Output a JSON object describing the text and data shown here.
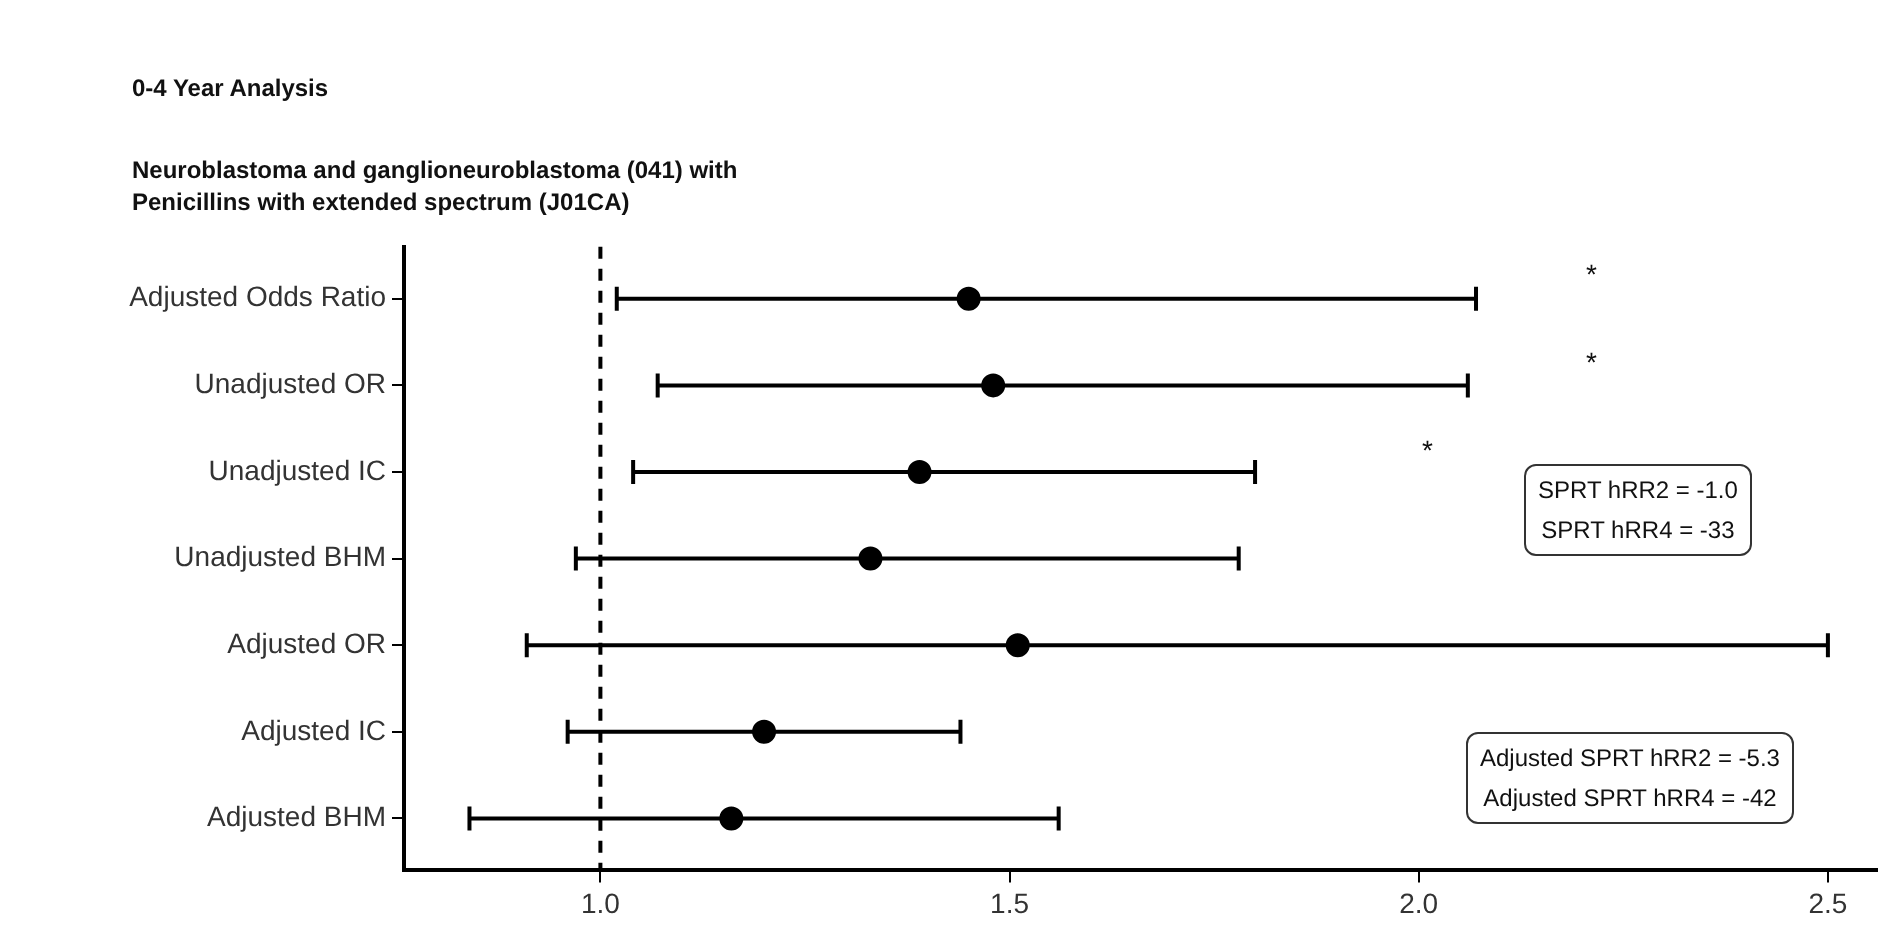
{
  "chart_data": {
    "type": "scatter",
    "orientation": "horizontal",
    "title": "0-4 Year Analysis",
    "subtitle": "Neuroblastoma and ganglioneuroblastoma (041) with\nPenicillins with extended spectrum (J01CA)",
    "categories": [
      "Adjusted Odds Ratio",
      "Unadjusted OR",
      "Unadjusted IC",
      "Unadjusted BHM",
      "Adjusted OR",
      "Adjusted IC",
      "Adjusted BHM"
    ],
    "values": [
      1.45,
      1.48,
      1.39,
      1.33,
      1.51,
      1.2,
      1.16
    ],
    "errors": [
      [
        1.02,
        2.07
      ],
      [
        1.07,
        2.06
      ],
      [
        1.04,
        1.8
      ],
      [
        0.97,
        1.78
      ],
      [
        0.91,
        2.5
      ],
      [
        0.96,
        1.44
      ],
      [
        0.84,
        1.56
      ]
    ],
    "color": "#000000",
    "marker": "circle",
    "grid": false,
    "legend": false,
    "xlim": [
      0.76,
      2.56
    ],
    "xticks": [
      {
        "value": 1,
        "label": "1.0"
      },
      {
        "value": 1.5,
        "label": "1.5"
      },
      {
        "value": 2,
        "label": "2.0"
      },
      {
        "value": 2.5,
        "label": "2.5"
      }
    ],
    "ref_lines": [
      {
        "axis": "x",
        "value": 1,
        "line_style": "dashed",
        "color": "#000000"
      }
    ],
    "annotations": [
      "*",
      "*",
      "*",
      "SPRT hRR2 = -1.0\nSPRT hRR4 = -33",
      "Adjusted SPRT hRR2 = -5.3\nAdjusted SPRT hRR4 = -42"
    ]
  }
}
